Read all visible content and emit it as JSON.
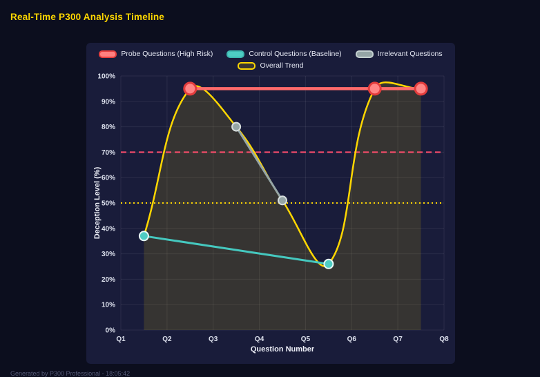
{
  "page": {
    "title": "Real-Time P300 Analysis Timeline",
    "footer": "Generated by P300 Professional - 18:05:42"
  },
  "chart_data": {
    "type": "line",
    "title": "Real-Time P300 Analysis Timeline",
    "xlabel": "Question Number",
    "ylabel": "Deception Level (%)",
    "xlim": [
      1,
      8
    ],
    "ylim": [
      0,
      100
    ],
    "x_tick_values": [
      1,
      2,
      3,
      4,
      5,
      6,
      7,
      8
    ],
    "x_tick_labels": [
      "Q1",
      "Q2",
      "Q3",
      "Q4",
      "Q5",
      "Q6",
      "Q7",
      "Q8"
    ],
    "y_tick_step": 10,
    "y_tick_suffix": "%",
    "grid": true,
    "legend_position": "top",
    "legend_rows": [
      [
        {
          "label": "Probe Questions (High Risk)",
          "fill": "#ff8080",
          "stroke": "#e53e3e"
        },
        {
          "label": "Control Questions (Baseline)",
          "fill": "#4ecdc4",
          "stroke": "#3db8b0"
        },
        {
          "label": "Irrelevant Questions",
          "fill": "#95a5a6",
          "stroke": "#c3cfcf"
        }
      ],
      [
        {
          "label": "Overall Trend",
          "fill": "rgba(255,215,0,0.15)",
          "stroke": "#ffd700"
        }
      ]
    ],
    "series": [
      {
        "name": "Overall Trend",
        "kind": "spline-area",
        "color": "#ffd700",
        "fill_color": "rgba(255,215,0,0.13)",
        "line_width": 2.5,
        "tension": 0.4,
        "point_radius": 0,
        "points": [
          [
            1.5,
            37
          ],
          [
            2.5,
            95
          ],
          [
            3.5,
            80
          ],
          [
            4.5,
            51
          ],
          [
            5.5,
            26
          ],
          [
            6.5,
            95
          ],
          [
            7.5,
            95
          ]
        ]
      },
      {
        "name": "Irrelevant Questions",
        "kind": "line",
        "color": "#95a5a6",
        "line_width": 3,
        "point_radius": 6,
        "point_fill": "#95a5a6",
        "point_stroke": "#d7dede",
        "point_stroke_width": 2,
        "points": [
          [
            3.5,
            80
          ],
          [
            4.5,
            51
          ]
        ]
      },
      {
        "name": "Control Questions (Baseline)",
        "kind": "line",
        "color": "#45c8bf",
        "line_width": 3,
        "point_radius": 6.5,
        "point_fill": "#4ecdc4",
        "point_stroke": "#e8fbf9",
        "point_stroke_width": 2,
        "points": [
          [
            1.5,
            37
          ],
          [
            5.5,
            26
          ]
        ]
      },
      {
        "name": "Probe Questions (High Risk)",
        "kind": "line",
        "color": "#ff6b6b",
        "line_width": 4.5,
        "point_radius": 8.5,
        "point_fill": "#ff8585",
        "point_stroke": "#e23c3c",
        "point_stroke_width": 3,
        "points": [
          [
            2.5,
            95
          ],
          [
            6.5,
            95
          ],
          [
            7.5,
            95
          ]
        ]
      }
    ],
    "thresholds": [
      {
        "value": 70,
        "color": "#ff4d6d",
        "dash": "8,5",
        "width": 2
      },
      {
        "value": 50,
        "color": "#ffd700",
        "dash": "2,4",
        "width": 2
      }
    ]
  }
}
